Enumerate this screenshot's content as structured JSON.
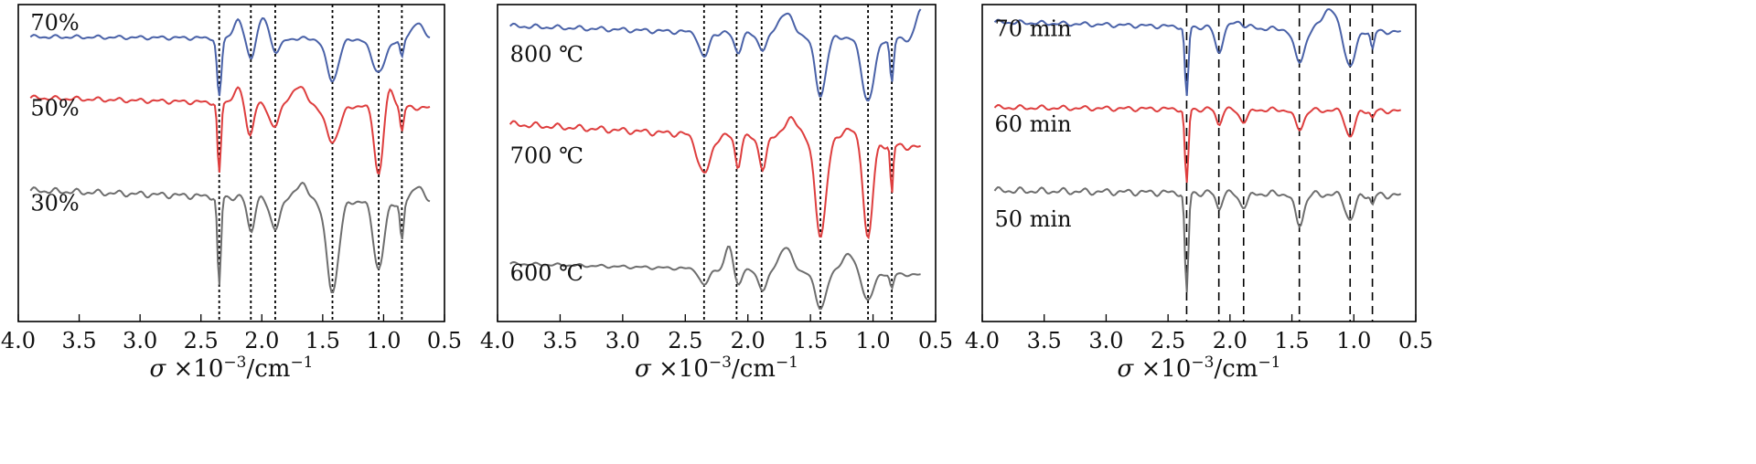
{
  "chart_data": [
    {
      "type": "line",
      "title": "",
      "xlabel_parts": {
        "symbol": "σ",
        "rest": "×10",
        "exponent": "−3",
        "unit": "/cm",
        "unit_exponent": "−1"
      },
      "xlim": [
        4.0,
        0.5
      ],
      "x_ticks": [
        "4.0",
        "3.5",
        "3.0",
        "2.5",
        "2.0",
        "1.5",
        "1.0",
        "0.5"
      ],
      "reference_lines": [
        2.35,
        2.09,
        1.89,
        1.42,
        1.04,
        0.85
      ],
      "reference_style": "dotted",
      "series": [
        {
          "name": "70%",
          "color": "#4a62a8",
          "label_at": [
            3.9,
            0.92
          ]
        },
        {
          "name": "50%",
          "color": "#de3e3e",
          "label_at": [
            3.9,
            0.65
          ]
        },
        {
          "name": "30%",
          "color": "#6e6e6e",
          "label_at": [
            3.9,
            0.35
          ]
        }
      ]
    },
    {
      "type": "line",
      "title": "",
      "xlabel_parts": {
        "symbol": "σ",
        "rest": "×10",
        "exponent": "−3",
        "unit": "/cm",
        "unit_exponent": "−1"
      },
      "xlim": [
        4.0,
        0.5
      ],
      "x_ticks": [
        "4.0",
        "3.5",
        "3.0",
        "2.5",
        "2.0",
        "1.5",
        "1.0",
        "0.5"
      ],
      "reference_lines": [
        2.35,
        2.09,
        1.89,
        1.42,
        1.04,
        0.85
      ],
      "reference_style": "dotted",
      "series": [
        {
          "name": "800 ℃",
          "color": "#4a62a8",
          "label_at": [
            3.9,
            0.82
          ]
        },
        {
          "name": "700 ℃",
          "color": "#de3e3e",
          "label_at": [
            3.9,
            0.5
          ]
        },
        {
          "name": "600 ℃",
          "color": "#6e6e6e",
          "label_at": [
            3.9,
            0.13
          ]
        }
      ]
    },
    {
      "type": "line",
      "title": "",
      "xlabel_parts": {
        "symbol": "σ",
        "rest": "×10",
        "exponent": "−3",
        "unit": "/cm",
        "unit_exponent": "−1"
      },
      "xlim": [
        4.0,
        0.5
      ],
      "x_ticks": [
        "4.0",
        "3.5",
        "3.0",
        "2.5",
        "2.0",
        "1.5",
        "1.0",
        "0.5"
      ],
      "reference_lines": [
        2.35,
        2.09,
        1.89,
        1.44,
        1.03,
        0.85
      ],
      "reference_style": "dashed",
      "series": [
        {
          "name": "70 min",
          "color": "#4a62a8",
          "label_at": [
            3.9,
            0.9
          ]
        },
        {
          "name": "60 min",
          "color": "#de3e3e",
          "label_at": [
            3.9,
            0.6
          ]
        },
        {
          "name": "50 min",
          "color": "#6e6e6e",
          "label_at": [
            3.9,
            0.3
          ]
        }
      ]
    }
  ]
}
